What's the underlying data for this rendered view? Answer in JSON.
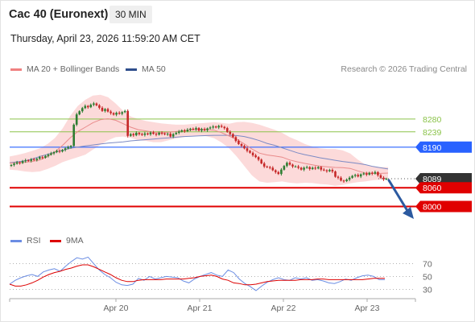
{
  "header": {
    "instrument": "Cac 40 (Euronext)",
    "timeframe": "30 MIN",
    "datetime": "Thursday, April 23, 2026 11:59:20 AM CET"
  },
  "legend": {
    "ma20_bollinger": {
      "label": "MA 20 + Bollinger Bands",
      "color": "#f08080"
    },
    "ma50": {
      "label": "MA 50",
      "color": "#2f4e8c"
    },
    "rsi": {
      "label": "RSI",
      "color": "#6b8de3"
    },
    "rsi_ma": {
      "label": "9MA",
      "color": "#dd0000"
    }
  },
  "source_note": "Research © 2026 Trading Central",
  "colors": {
    "candle_up": "#2e7d32",
    "candle_down": "#c62828",
    "resistance": "#8bc34a",
    "pivot": "#2962ff",
    "support": "#e00000",
    "last_price_tag": "#333333",
    "band_fill": "#fbd3d3",
    "forecast_arrow": "#2c5aa0"
  },
  "chart_data": [
    {
      "type": "candlestick",
      "title": "",
      "x_tick_labels": [
        "Apr 20",
        "Apr 21",
        "Apr 22",
        "Apr 23"
      ],
      "ylim": [
        7978,
        8370
      ],
      "levels": [
        {
          "value": "8280",
          "kind": "resistance"
        },
        {
          "value": "8239",
          "kind": "resistance"
        },
        {
          "value": "8190",
          "kind": "pivot"
        },
        {
          "value": "8089",
          "kind": "last_price"
        },
        {
          "value": "8060",
          "kind": "support"
        },
        {
          "value": "8000",
          "kind": "support"
        }
      ],
      "close": [
        8133,
        8137,
        8141,
        8139,
        8145,
        8148,
        8146,
        8151,
        8149,
        8153,
        8158,
        8156,
        8162,
        8166,
        8170,
        8174,
        8178,
        8176,
        8181,
        8186,
        8190,
        8194,
        8262,
        8295,
        8305,
        8315,
        8322,
        8318,
        8326,
        8330,
        8324,
        8316,
        8306,
        8312,
        8304,
        8299,
        8294,
        8300,
        8297,
        8302,
        8306,
        8226,
        8232,
        8228,
        8236,
        8232,
        8229,
        8234,
        8231,
        8237,
        8233,
        8230,
        8236,
        8234,
        8231,
        8233,
        8224,
        8232,
        8236,
        8240,
        8244,
        8241,
        8246,
        8249,
        8247,
        8251,
        8243,
        8248,
        8244,
        8250,
        8253,
        8256,
        8253,
        8258,
        8255,
        8251,
        8239,
        8232,
        8222,
        8210,
        8200,
        8194,
        8186,
        8178,
        8172,
        8164,
        8158,
        8150,
        8138,
        8128,
        8126,
        8124,
        8116,
        8110,
        8104,
        8118,
        8130,
        8140,
        8134,
        8128,
        8128,
        8124,
        8118,
        8124,
        8126,
        8120,
        8124,
        8122,
        8126,
        8118,
        8116,
        8113,
        8117,
        8112,
        8095,
        8092,
        8083,
        8081,
        8086,
        8092,
        8098,
        8101,
        8096,
        8103,
        8106,
        8102,
        8108,
        8105,
        8110,
        8100,
        8092,
        8087,
        8089
      ],
      "bollinger_upper": [
        8160,
        8165,
        8171,
        8178,
        8186,
        8200,
        8220,
        8250,
        8290,
        8322,
        8342,
        8355,
        8358,
        8350,
        8330,
        8306,
        8288,
        8280,
        8274,
        8270,
        8266,
        8264,
        8262,
        8262,
        8264,
        8266,
        8268,
        8270,
        8268,
        8265,
        8270,
        8271,
        8268,
        8262,
        8254,
        8246,
        8236,
        8222,
        8212,
        8200,
        8192,
        8186,
        8184,
        8184,
        8180,
        8170,
        8150,
        8134,
        8128,
        8126,
        8126
      ],
      "bollinger_lower": [
        8118,
        8116,
        8112,
        8110,
        8112,
        8120,
        8130,
        8142,
        8150,
        8158,
        8166,
        8182,
        8198,
        8212,
        8222,
        8224,
        8220,
        8212,
        8210,
        8206,
        8206,
        8212,
        8218,
        8222,
        8226,
        8228,
        8225,
        8219,
        8205,
        8186,
        8160,
        8130,
        8100,
        8080,
        8076,
        8078,
        8080,
        8076,
        8074,
        8076,
        8075,
        8072,
        8070,
        8066,
        8069,
        8074,
        8078,
        8080,
        8084,
        8086,
        8088
      ],
      "ma50": [
        8140,
        8143,
        8146,
        8152,
        8160,
        8167,
        8174,
        8180,
        8186,
        8190,
        8194,
        8197,
        8200,
        8203,
        8205,
        8207,
        8210,
        8212,
        8214,
        8216,
        8218,
        8220,
        8222,
        8224,
        8225,
        8226,
        8227,
        8228,
        8228,
        8228,
        8227,
        8224,
        8218,
        8211,
        8202,
        8196,
        8188,
        8180,
        8172,
        8166,
        8161,
        8156,
        8152,
        8148,
        8144,
        8141,
        8138,
        8134,
        8128,
        8124,
        8120
      ]
    },
    {
      "type": "line",
      "title": "",
      "ylim": [
        23,
        83
      ],
      "y_tick_labels": [
        "70",
        "50",
        "30"
      ],
      "series": [
        {
          "name": "RSI",
          "values": [
            38,
            44,
            48,
            51,
            53,
            50,
            57,
            60,
            62,
            58,
            66,
            73,
            79,
            77,
            80,
            70,
            60,
            53,
            48,
            41,
            37,
            36,
            38,
            47,
            44,
            50,
            46,
            48,
            50,
            49,
            48,
            43,
            40,
            46,
            50,
            53,
            56,
            52,
            50,
            60,
            56,
            46,
            39,
            34,
            28,
            35,
            41,
            45,
            48,
            45,
            44,
            48,
            46,
            48,
            44,
            45,
            43,
            40,
            39,
            42,
            46,
            44,
            48,
            51,
            52,
            50,
            45,
            45
          ]
        },
        {
          "name": "9MA",
          "values": [
            38,
            35,
            35,
            37,
            40,
            44,
            49,
            53,
            56,
            58,
            61,
            63,
            66,
            68,
            68,
            65,
            61,
            57,
            53,
            48,
            44,
            42,
            42,
            44,
            45,
            45,
            45,
            45,
            46,
            46,
            46,
            46,
            47,
            48,
            50,
            51,
            52,
            50,
            46,
            44,
            40,
            39,
            37,
            37,
            38,
            40,
            42,
            43,
            44,
            44,
            44,
            44,
            45,
            45,
            45,
            46,
            46,
            45,
            45,
            45,
            45,
            45,
            45,
            45,
            46,
            47,
            47,
            47
          ]
        }
      ]
    }
  ]
}
